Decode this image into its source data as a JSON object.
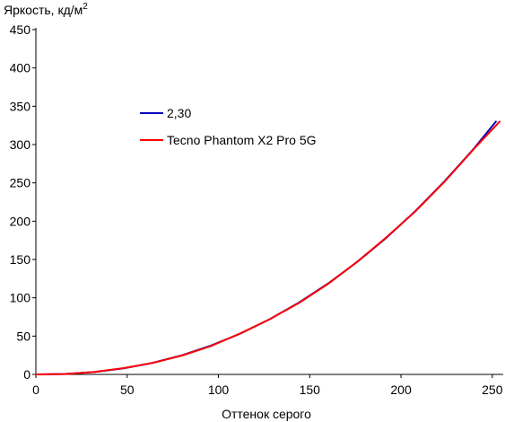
{
  "chart_data": {
    "type": "line",
    "title": "",
    "ylabel": "Яркость, кд/м",
    "ylabel_sup": "2",
    "xlabel": "Оттенок серого",
    "xlim": [
      0,
      255
    ],
    "ylim": [
      0,
      450
    ],
    "xticks": [
      0,
      50,
      100,
      150,
      200,
      250
    ],
    "yticks": [
      0,
      50,
      100,
      150,
      200,
      250,
      300,
      350,
      400,
      450
    ],
    "grid": false,
    "legend_position": "upper-left-inside",
    "series": [
      {
        "name": "2,30",
        "color": "#0000c0",
        "x": [
          0,
          16,
          32,
          48,
          64,
          80,
          96,
          112,
          128,
          144,
          160,
          176,
          192,
          208,
          224,
          240,
          252
        ],
        "y": [
          0,
          0.6,
          3.1,
          7.9,
          15.1,
          25,
          37.7,
          53.3,
          71.9,
          93.6,
          118.5,
          146.8,
          178.4,
          213.5,
          252.4,
          295,
          330
        ]
      },
      {
        "name": "Tecno Phantom X2 Pro 5G",
        "color": "#ff0000",
        "x": [
          0,
          16,
          32,
          48,
          64,
          80,
          96,
          112,
          128,
          144,
          160,
          176,
          192,
          208,
          224,
          240,
          254
        ],
        "y": [
          0,
          0.5,
          3.3,
          8.2,
          15.0,
          24.6,
          37.2,
          53.5,
          72.0,
          93.2,
          118.0,
          147.0,
          178.9,
          213.0,
          252.0,
          294.5,
          330
        ]
      }
    ]
  }
}
